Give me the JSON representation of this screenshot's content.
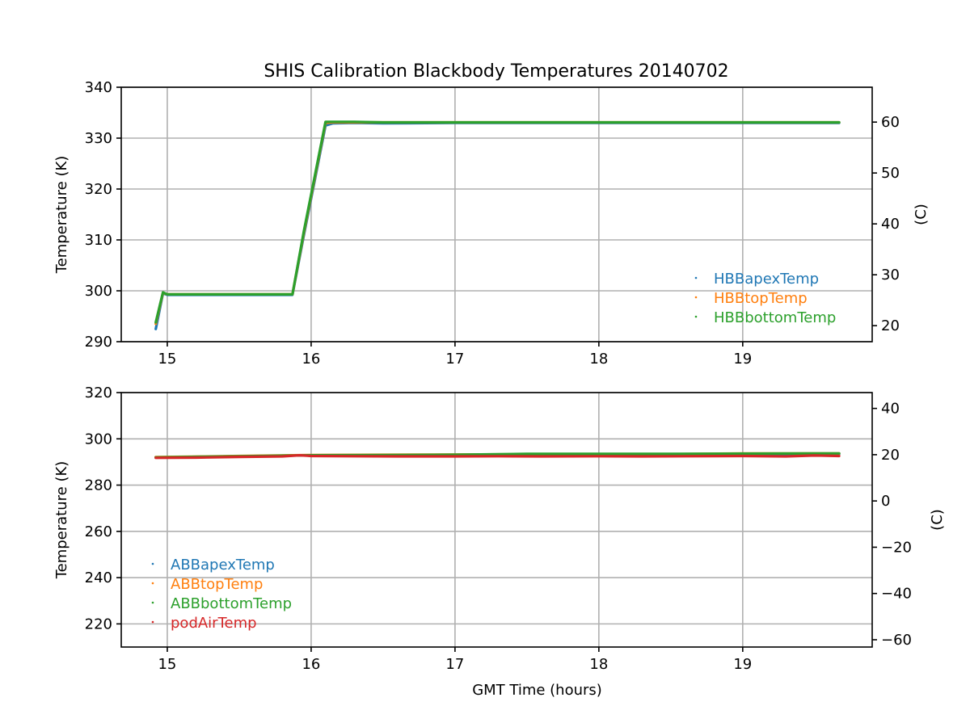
{
  "chart_data": [
    {
      "type": "line",
      "title": "SHIS Calibration Blackbody Temperatures 20140702",
      "xlabel": "",
      "ylabel": "Temperature (K)",
      "y2label": "(C)",
      "xlim": [
        14.68,
        19.9
      ],
      "ylim": [
        290,
        340
      ],
      "y2lim": [
        16.85,
        66.85
      ],
      "xticks": [
        15,
        16,
        17,
        18,
        19
      ],
      "yticks": [
        290,
        300,
        310,
        320,
        330,
        340
      ],
      "y2ticks": [
        20,
        30,
        40,
        50,
        60
      ],
      "grid": true,
      "legend_position": "lower-right",
      "series": [
        {
          "name": "HBBapexTemp",
          "color": "#1f77b4",
          "x": [
            14.92,
            14.97,
            15.0,
            15.87,
            15.95,
            16.02,
            16.1,
            16.15,
            16.3,
            16.5,
            17.0,
            17.5,
            18.0,
            18.5,
            19.0,
            19.5,
            19.67
          ],
          "y": [
            292.5,
            299.5,
            299.2,
            299.2,
            311.0,
            321.0,
            332.5,
            332.9,
            333.0,
            332.9,
            333.0,
            333.0,
            333.0,
            333.0,
            333.0,
            333.0,
            333.0
          ]
        },
        {
          "name": "HBBtopTemp",
          "color": "#ff7f0e",
          "x": [
            14.92,
            14.97,
            15.0,
            15.87,
            15.95,
            16.02,
            16.1,
            16.15,
            16.3,
            16.5,
            17.0,
            17.5,
            18.0,
            18.5,
            19.0,
            19.5,
            19.67
          ],
          "y": [
            293.5,
            299.6,
            299.3,
            299.3,
            311.5,
            321.5,
            333.0,
            333.1,
            333.1,
            333.1,
            333.1,
            333.1,
            333.1,
            333.1,
            333.1,
            333.1,
            333.1
          ]
        },
        {
          "name": "HBBbottomTemp",
          "color": "#2ca02c",
          "x": [
            14.92,
            14.97,
            15.0,
            15.87,
            15.95,
            16.02,
            16.1,
            16.15,
            16.3,
            16.5,
            17.0,
            17.5,
            18.0,
            18.5,
            19.0,
            19.5,
            19.67
          ],
          "y": [
            293.8,
            299.7,
            299.3,
            299.3,
            311.8,
            321.8,
            333.2,
            333.2,
            333.2,
            333.1,
            333.1,
            333.1,
            333.1,
            333.1,
            333.1,
            333.1,
            333.1
          ]
        }
      ]
    },
    {
      "type": "line",
      "title": "",
      "xlabel": "GMT Time (hours)",
      "ylabel": "Temperature (K)",
      "y2label": "(C)",
      "xlim": [
        14.68,
        19.9
      ],
      "ylim": [
        210,
        320
      ],
      "y2lim": [
        -63.15,
        46.85
      ],
      "xticks": [
        15,
        16,
        17,
        18,
        19
      ],
      "yticks": [
        220,
        240,
        260,
        280,
        300,
        320
      ],
      "y2ticks": [
        -60,
        -40,
        -20,
        0,
        20,
        40
      ],
      "grid": true,
      "legend_position": "lower-left",
      "series": [
        {
          "name": "ABBapexTemp",
          "color": "#1f77b4",
          "x": [
            14.92,
            15.5,
            16.0,
            16.5,
            17.0,
            17.5,
            18.0,
            18.5,
            19.0,
            19.5,
            19.67
          ],
          "y": [
            292.0,
            292.5,
            292.9,
            293.0,
            293.1,
            293.2,
            293.3,
            293.3,
            293.4,
            293.5,
            293.5
          ]
        },
        {
          "name": "ABBtopTemp",
          "color": "#ff7f0e",
          "x": [
            14.92,
            15.5,
            16.0,
            16.5,
            17.0,
            17.5,
            18.0,
            18.5,
            19.0,
            19.5,
            19.67
          ],
          "y": [
            292.1,
            292.6,
            293.0,
            293.1,
            293.2,
            293.3,
            293.4,
            293.4,
            293.7,
            293.7,
            293.7
          ]
        },
        {
          "name": "ABBbottomTemp",
          "color": "#2ca02c",
          "x": [
            14.92,
            15.5,
            16.0,
            16.5,
            17.0,
            17.5,
            18.0,
            18.5,
            19.0,
            19.5,
            19.67
          ],
          "y": [
            292.0,
            292.5,
            292.9,
            293.0,
            293.1,
            293.5,
            293.5,
            293.5,
            293.6,
            293.7,
            293.7
          ]
        },
        {
          "name": "podAirTemp",
          "color": "#d62728",
          "x": [
            14.92,
            15.2,
            15.5,
            15.8,
            15.92,
            16.0,
            16.3,
            16.6,
            17.0,
            17.3,
            17.6,
            18.0,
            18.3,
            18.6,
            19.0,
            19.3,
            19.5,
            19.67
          ],
          "y": [
            291.8,
            291.9,
            292.2,
            292.4,
            292.9,
            292.6,
            292.5,
            292.4,
            292.4,
            292.5,
            292.4,
            292.5,
            292.4,
            292.5,
            292.6,
            292.4,
            292.8,
            292.6
          ]
        }
      ]
    }
  ]
}
